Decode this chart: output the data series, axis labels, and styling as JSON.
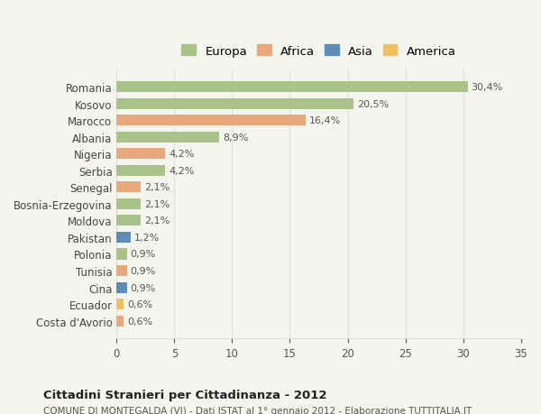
{
  "countries": [
    "Romania",
    "Kosovo",
    "Marocco",
    "Albania",
    "Nigeria",
    "Serbia",
    "Senegal",
    "Bosnia-Erzegovina",
    "Moldova",
    "Pakistan",
    "Polonia",
    "Tunisia",
    "Cina",
    "Ecuador",
    "Costa d'Avorio"
  ],
  "values": [
    30.4,
    20.5,
    16.4,
    8.9,
    4.2,
    4.2,
    2.1,
    2.1,
    2.1,
    1.2,
    0.9,
    0.9,
    0.9,
    0.6,
    0.6
  ],
  "labels": [
    "30,4%",
    "20,5%",
    "16,4%",
    "8,9%",
    "4,2%",
    "4,2%",
    "2,1%",
    "2,1%",
    "2,1%",
    "1,2%",
    "0,9%",
    "0,9%",
    "0,9%",
    "0,6%",
    "0,6%"
  ],
  "continents": [
    "Europa",
    "Europa",
    "Africa",
    "Europa",
    "Africa",
    "Europa",
    "Africa",
    "Europa",
    "Europa",
    "Asia",
    "Europa",
    "Africa",
    "Asia",
    "America",
    "Africa"
  ],
  "colors": {
    "Europa": "#a8c287",
    "Africa": "#e8a87c",
    "Asia": "#5b8db8",
    "America": "#f0c060"
  },
  "legend_colors": {
    "Europa": "#a8c287",
    "Africa": "#e8a87c",
    "Asia": "#5b8db8",
    "America": "#f0c060"
  },
  "xlim": [
    0,
    35
  ],
  "xticks": [
    0,
    5,
    10,
    15,
    20,
    25,
    30,
    35
  ],
  "title": "Cittadini Stranieri per Cittadinanza - 2012",
  "subtitle": "COMUNE DI MONTEGALDA (VI) - Dati ISTAT al 1° gennaio 2012 - Elaborazione TUTTITALIA.IT",
  "background_color": "#f5f5f0",
  "bar_height": 0.65,
  "grid_color": "#dddddd"
}
